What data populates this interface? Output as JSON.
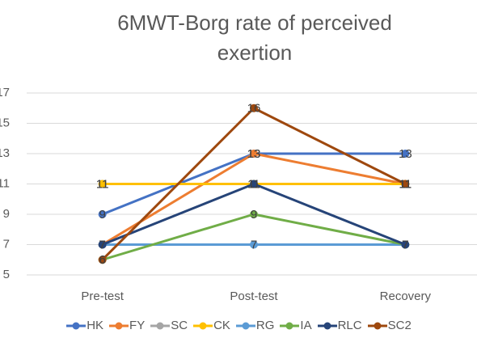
{
  "chart_data": {
    "type": "line",
    "title": "6MWT-Borg rate of perceived exertion",
    "categories": [
      "Pre-test",
      "Post-test",
      "Recovery"
    ],
    "series": [
      {
        "name": "HK",
        "color": "#4472c4",
        "values": [
          9,
          13,
          13
        ]
      },
      {
        "name": "FY",
        "color": "#ed7d31",
        "values": [
          7,
          13,
          11
        ]
      },
      {
        "name": "SC",
        "color": "#a5a5a5",
        "values": [
          11,
          11,
          11
        ]
      },
      {
        "name": "CK",
        "color": "#ffc000",
        "values": [
          11,
          11,
          11
        ]
      },
      {
        "name": "RG",
        "color": "#5b9bd5",
        "values": [
          7,
          7,
          7
        ]
      },
      {
        "name": "IA",
        "color": "#70ad47",
        "values": [
          6,
          9,
          7
        ]
      },
      {
        "name": "RLC",
        "color": "#264478",
        "values": [
          7,
          11,
          7
        ]
      },
      {
        "name": "SC2",
        "color": "#9e480e",
        "values": [
          6,
          16,
          11
        ]
      }
    ],
    "ylim": [
      5,
      17
    ],
    "yticks": [
      5,
      7,
      9,
      11,
      13,
      15,
      17
    ],
    "grid": true
  }
}
